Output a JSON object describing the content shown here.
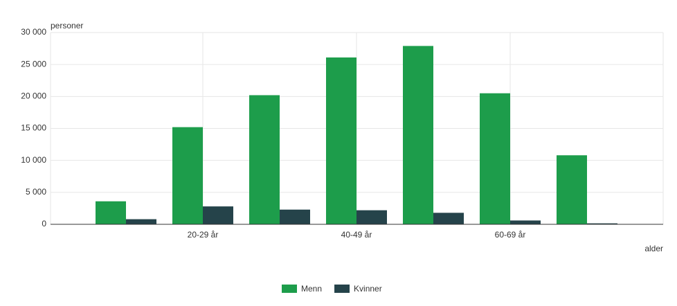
{
  "chart_data": {
    "type": "bar",
    "y_label": "personer",
    "x_label": "alder",
    "categories": [
      null,
      "20-29 år",
      null,
      "40-49 år",
      null,
      "60-69 år",
      null
    ],
    "series": [
      {
        "name": "Menn",
        "color": "#1d9d4b",
        "values": [
          3600,
          15200,
          20200,
          26100,
          27900,
          20500,
          10800
        ]
      },
      {
        "name": "Kvinner",
        "color": "#25434a",
        "values": [
          800,
          2800,
          2300,
          2200,
          1800,
          600,
          150
        ]
      }
    ],
    "ylim": [
      0,
      30000
    ],
    "yticks": [
      {
        "value": 0,
        "label": "0"
      },
      {
        "value": 5000,
        "label": "5 000"
      },
      {
        "value": 10000,
        "label": "10 000"
      },
      {
        "value": 15000,
        "label": "15 000"
      },
      {
        "value": 20000,
        "label": "20 000"
      },
      {
        "value": 25000,
        "label": "25 000"
      },
      {
        "value": 30000,
        "label": "30 000"
      }
    ],
    "grid": true,
    "legend": "bottom"
  }
}
